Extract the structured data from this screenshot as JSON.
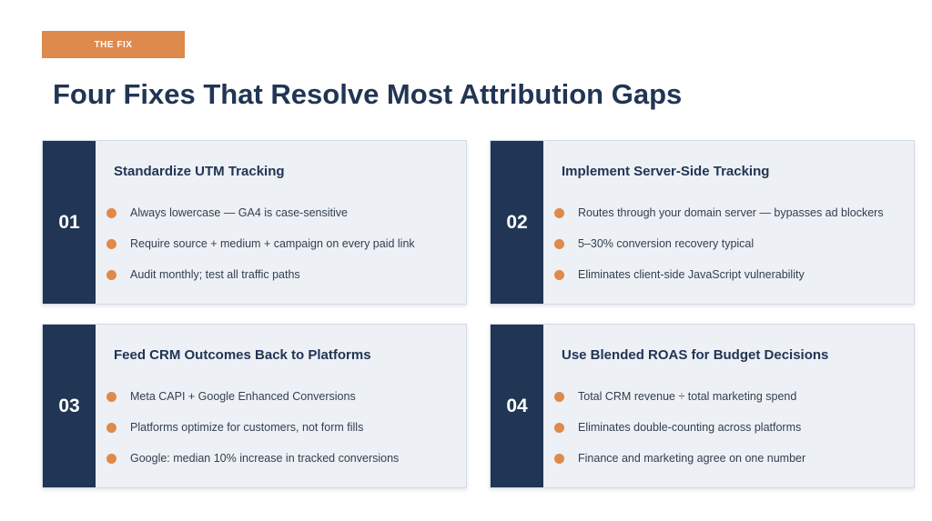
{
  "tag": "THE FIX",
  "title": "Four Fixes That Resolve Most Attribution Gaps",
  "accent_color": "#dd8a4c",
  "navy_color": "#213554",
  "cards": [
    {
      "number": "01",
      "title": "Standardize UTM Tracking",
      "bullets": [
        "Always lowercase — GA4 is case-sensitive",
        "Require source + medium + campaign on every paid link",
        "Audit monthly; test all traffic paths"
      ]
    },
    {
      "number": "02",
      "title": "Implement Server-Side Tracking",
      "bullets": [
        "Routes through your domain server — bypasses ad blockers",
        "5–30% conversion recovery typical",
        "Eliminates client-side JavaScript vulnerability"
      ]
    },
    {
      "number": "03",
      "title": "Feed CRM Outcomes Back to Platforms",
      "bullets": [
        "Meta CAPI + Google Enhanced Conversions",
        "Platforms optimize for customers, not form fills",
        "Google: median 10% increase in tracked conversions"
      ]
    },
    {
      "number": "04",
      "title": "Use Blended ROAS for Budget Decisions",
      "bullets": [
        "Total CRM revenue ÷ total marketing spend",
        "Eliminates double-counting across platforms",
        "Finance and marketing agree on one number"
      ]
    }
  ]
}
